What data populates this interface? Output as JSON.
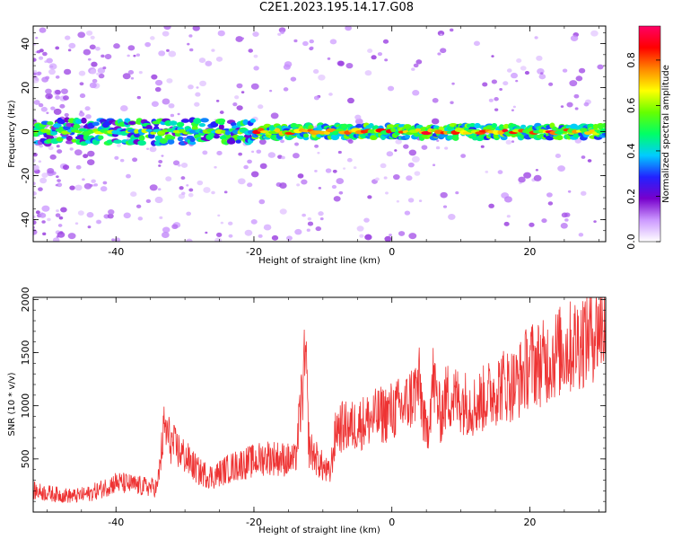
{
  "title": "C2E1.2023.195.14.17.G08",
  "chart_data": [
    {
      "type": "heatmap",
      "xlabel": "Height of straight line (km)",
      "ylabel": "Frequency (Hz)",
      "xlim": [
        -52,
        31
      ],
      "ylim": [
        -50,
        48
      ],
      "x_ticks": [
        -40,
        -20,
        0,
        20
      ],
      "y_ticks": [
        -40,
        -20,
        0,
        20,
        40
      ],
      "colorbar": {
        "label": "Normalized spectral amplitude",
        "range": [
          0,
          0.95
        ],
        "ticks": [
          0.0,
          0.2,
          0.4,
          0.6,
          0.8
        ],
        "colors": [
          "#ffffff",
          "#cc99ff",
          "#7700cc",
          "#2222ff",
          "#00ccff",
          "#00ff66",
          "#66ff00",
          "#ffff00",
          "#ff8800",
          "#ff0000",
          "#ff0066"
        ]
      },
      "band": {
        "center_frequency": 0,
        "half_width": 5,
        "x_range": [
          -52,
          31
        ]
      },
      "grid": false
    },
    {
      "type": "line",
      "xlabel": "Height of straight line (km)",
      "ylabel": "SNR (10 * v/v)",
      "xlim": [
        -52,
        31
      ],
      "ylim": [
        0,
        2020
      ],
      "x_ticks": [
        -40,
        -20,
        0,
        20
      ],
      "y_ticks": [
        500,
        1000,
        1500,
        2000
      ],
      "color": "#ee3333",
      "grid": false,
      "x": [
        -52,
        -50,
        -48,
        -46,
        -44,
        -42,
        -40,
        -38,
        -36,
        -34,
        -33,
        -32,
        -30,
        -28,
        -26,
        -24,
        -22,
        -20,
        -18,
        -16,
        -14,
        -12.5,
        -12,
        -10,
        -9,
        -8,
        -6,
        -4,
        -2,
        0,
        2,
        3,
        4,
        5,
        6,
        7,
        8,
        10,
        12,
        14,
        16,
        18,
        20,
        22,
        24,
        26,
        28,
        30,
        31
      ],
      "y": [
        200,
        180,
        160,
        150,
        170,
        220,
        280,
        260,
        240,
        230,
        800,
        650,
        520,
        380,
        330,
        400,
        450,
        480,
        520,
        500,
        480,
        1450,
        600,
        420,
        350,
        800,
        800,
        850,
        900,
        950,
        1000,
        1100,
        1200,
        700,
        1250,
        900,
        1100,
        1050,
        1000,
        1100,
        1200,
        1200,
        1400,
        1400,
        1500,
        1550,
        1650,
        1750,
        1800
      ]
    }
  ]
}
